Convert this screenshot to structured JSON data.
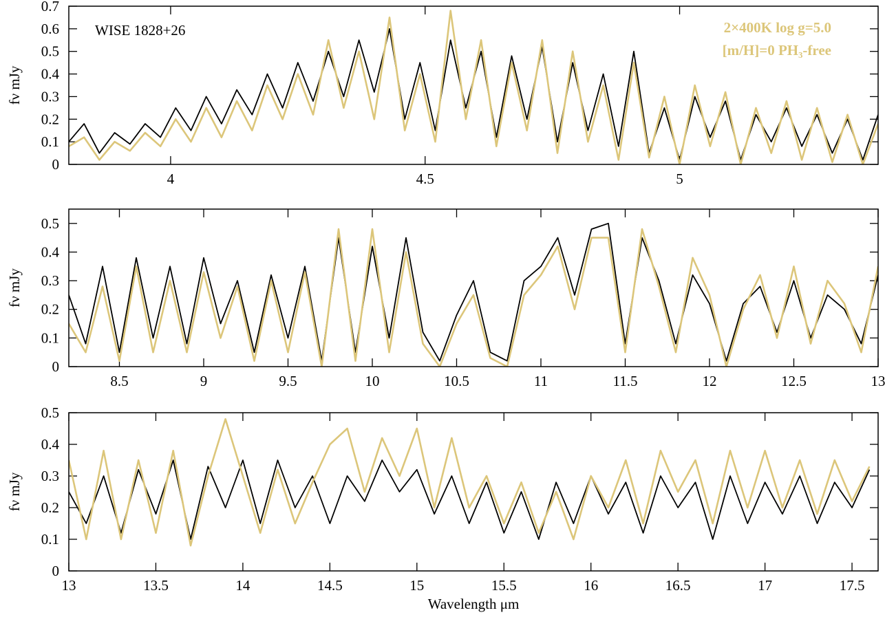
{
  "chart_data": [
    {
      "type": "line",
      "ylabel": "fν mJy",
      "xlim": [
        3.8,
        5.39
      ],
      "ylim": [
        0,
        0.7
      ],
      "xticks": [
        4,
        4.5,
        5
      ],
      "yticks": [
        0,
        0.1,
        0.2,
        0.3,
        0.4,
        0.5,
        0.6,
        0.7
      ],
      "x": [
        3.8,
        3.83,
        3.86,
        3.89,
        3.92,
        3.95,
        3.98,
        4.01,
        4.04,
        4.07,
        4.1,
        4.13,
        4.16,
        4.19,
        4.22,
        4.25,
        4.28,
        4.31,
        4.34,
        4.37,
        4.4,
        4.43,
        4.46,
        4.49,
        4.52,
        4.55,
        4.58,
        4.61,
        4.64,
        4.67,
        4.7,
        4.73,
        4.76,
        4.79,
        4.82,
        4.85,
        4.88,
        4.91,
        4.94,
        4.97,
        5.0,
        5.03,
        5.06,
        5.09,
        5.12,
        5.15,
        5.18,
        5.21,
        5.24,
        5.27,
        5.3,
        5.33,
        5.36,
        5.39
      ],
      "series": [
        {
          "name": "WISE 1828+26",
          "color": "#000000",
          "values": [
            0.1,
            0.18,
            0.05,
            0.14,
            0.09,
            0.18,
            0.12,
            0.25,
            0.15,
            0.3,
            0.18,
            0.33,
            0.22,
            0.4,
            0.25,
            0.45,
            0.28,
            0.5,
            0.3,
            0.55,
            0.32,
            0.6,
            0.2,
            0.45,
            0.15,
            0.55,
            0.25,
            0.5,
            0.12,
            0.48,
            0.2,
            0.52,
            0.1,
            0.45,
            0.15,
            0.4,
            0.08,
            0.5,
            0.05,
            0.25,
            0.02,
            0.3,
            0.12,
            0.28,
            0.02,
            0.22,
            0.1,
            0.25,
            0.08,
            0.22,
            0.05,
            0.2,
            0.02,
            0.22
          ]
        },
        {
          "name": [
            "2×400K log g=5.0",
            "[m/H]=0 PH₃-free"
          ],
          "color": "#dcc67a",
          "values": [
            0.08,
            0.12,
            0.02,
            0.1,
            0.06,
            0.14,
            0.08,
            0.2,
            0.1,
            0.25,
            0.12,
            0.28,
            0.15,
            0.35,
            0.2,
            0.4,
            0.22,
            0.55,
            0.25,
            0.5,
            0.2,
            0.65,
            0.15,
            0.4,
            0.1,
            0.68,
            0.2,
            0.55,
            0.08,
            0.45,
            0.15,
            0.55,
            0.05,
            0.5,
            0.1,
            0.35,
            0.02,
            0.45,
            0.03,
            0.3,
            0.0,
            0.35,
            0.08,
            0.32,
            0.0,
            0.25,
            0.05,
            0.28,
            0.02,
            0.25,
            0.01,
            0.22,
            0.0,
            0.18
          ]
        }
      ]
    },
    {
      "type": "line",
      "ylabel": "fν mJy",
      "xlim": [
        8.2,
        13
      ],
      "ylim": [
        0,
        0.55
      ],
      "xticks": [
        8.5,
        9,
        9.5,
        10,
        10.5,
        11,
        11.5,
        12,
        12.5,
        13
      ],
      "yticks": [
        0,
        0.1,
        0.2,
        0.3,
        0.4,
        0.5
      ],
      "x": [
        8.2,
        8.3,
        8.4,
        8.5,
        8.6,
        8.7,
        8.8,
        8.9,
        9.0,
        9.1,
        9.2,
        9.3,
        9.4,
        9.5,
        9.6,
        9.7,
        9.8,
        9.9,
        10.0,
        10.1,
        10.2,
        10.3,
        10.4,
        10.5,
        10.6,
        10.7,
        10.8,
        10.9,
        11.0,
        11.1,
        11.2,
        11.3,
        11.4,
        11.5,
        11.6,
        11.7,
        11.8,
        11.9,
        12.0,
        12.1,
        12.2,
        12.3,
        12.4,
        12.5,
        12.6,
        12.7,
        12.8,
        12.9,
        13.0
      ],
      "series": [
        {
          "color": "#000000",
          "values": [
            0.25,
            0.08,
            0.35,
            0.05,
            0.38,
            0.1,
            0.35,
            0.08,
            0.38,
            0.15,
            0.3,
            0.05,
            0.32,
            0.1,
            0.35,
            0.02,
            0.45,
            0.05,
            0.42,
            0.1,
            0.45,
            0.12,
            0.02,
            0.18,
            0.3,
            0.05,
            0.02,
            0.3,
            0.35,
            0.45,
            0.25,
            0.48,
            0.5,
            0.08,
            0.45,
            0.3,
            0.08,
            0.32,
            0.22,
            0.02,
            0.22,
            0.28,
            0.12,
            0.3,
            0.1,
            0.25,
            0.2,
            0.08,
            0.32
          ]
        },
        {
          "color": "#dcc67a",
          "values": [
            0.15,
            0.05,
            0.28,
            0.02,
            0.35,
            0.05,
            0.3,
            0.05,
            0.33,
            0.1,
            0.28,
            0.02,
            0.3,
            0.05,
            0.33,
            0.0,
            0.48,
            0.02,
            0.48,
            0.05,
            0.4,
            0.08,
            0.0,
            0.15,
            0.25,
            0.03,
            0.0,
            0.25,
            0.32,
            0.42,
            0.2,
            0.45,
            0.45,
            0.05,
            0.48,
            0.28,
            0.05,
            0.38,
            0.25,
            0.0,
            0.2,
            0.32,
            0.1,
            0.35,
            0.08,
            0.3,
            0.22,
            0.05,
            0.35
          ]
        }
      ]
    },
    {
      "type": "line",
      "ylabel": "fν mJy",
      "xlabel": "Wavelength μm",
      "xlim": [
        13,
        17.65
      ],
      "ylim": [
        0,
        0.5
      ],
      "xticks": [
        13,
        13.5,
        14,
        14.5,
        15,
        15.5,
        16,
        16.5,
        17,
        17.5
      ],
      "yticks": [
        0,
        0.1,
        0.2,
        0.3,
        0.4,
        0.5
      ],
      "x": [
        13.0,
        13.1,
        13.2,
        13.3,
        13.4,
        13.5,
        13.6,
        13.7,
        13.8,
        13.9,
        14.0,
        14.1,
        14.2,
        14.3,
        14.4,
        14.5,
        14.6,
        14.7,
        14.8,
        14.9,
        15.0,
        15.1,
        15.2,
        15.3,
        15.4,
        15.5,
        15.6,
        15.7,
        15.8,
        15.9,
        16.0,
        16.1,
        16.2,
        16.3,
        16.4,
        16.5,
        16.6,
        16.7,
        16.8,
        16.9,
        17.0,
        17.1,
        17.2,
        17.3,
        17.4,
        17.5,
        17.6
      ],
      "series": [
        {
          "color": "#000000",
          "values": [
            0.25,
            0.15,
            0.3,
            0.12,
            0.32,
            0.18,
            0.35,
            0.1,
            0.33,
            0.2,
            0.35,
            0.15,
            0.35,
            0.2,
            0.3,
            0.15,
            0.3,
            0.22,
            0.35,
            0.25,
            0.32,
            0.18,
            0.3,
            0.15,
            0.28,
            0.12,
            0.25,
            0.1,
            0.28,
            0.15,
            0.3,
            0.18,
            0.28,
            0.12,
            0.3,
            0.2,
            0.28,
            0.1,
            0.3,
            0.15,
            0.28,
            0.18,
            0.3,
            0.15,
            0.28,
            0.2,
            0.32
          ]
        },
        {
          "color": "#dcc67a",
          "values": [
            0.35,
            0.1,
            0.38,
            0.1,
            0.35,
            0.12,
            0.38,
            0.08,
            0.3,
            0.48,
            0.3,
            0.12,
            0.32,
            0.15,
            0.28,
            0.4,
            0.45,
            0.25,
            0.42,
            0.3,
            0.45,
            0.2,
            0.42,
            0.2,
            0.3,
            0.15,
            0.28,
            0.12,
            0.25,
            0.1,
            0.3,
            0.2,
            0.35,
            0.15,
            0.38,
            0.25,
            0.35,
            0.15,
            0.38,
            0.2,
            0.38,
            0.2,
            0.35,
            0.18,
            0.35,
            0.22,
            0.33
          ]
        }
      ]
    }
  ]
}
